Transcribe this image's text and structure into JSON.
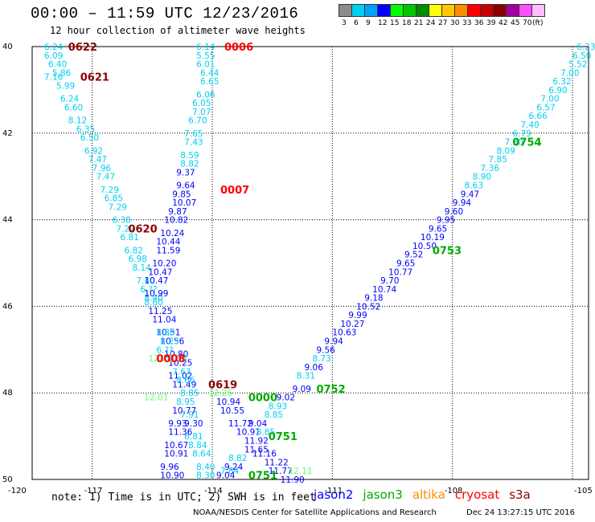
{
  "header": {
    "title": "00:00 – 11:59 UTC 12/23/2016",
    "subtitle": "12 hour collection of altimeter wave heights"
  },
  "legend": {
    "unit": "(ft)",
    "bins": [
      {
        "label": "3",
        "color": "#8c8c8c"
      },
      {
        "label": "6",
        "color": "#00d0f0"
      },
      {
        "label": "9",
        "color": "#00a0ff"
      },
      {
        "label": "12",
        "color": "#0000ff"
      },
      {
        "label": "15",
        "color": "#00ff00"
      },
      {
        "label": "18",
        "color": "#00c800"
      },
      {
        "label": "21",
        "color": "#008c00"
      },
      {
        "label": "24",
        "color": "#ffff00"
      },
      {
        "label": "27",
        "color": "#ffc800"
      },
      {
        "label": "30",
        "color": "#ff8c00"
      },
      {
        "label": "33",
        "color": "#ff0000"
      },
      {
        "label": "36",
        "color": "#c80000"
      },
      {
        "label": "39",
        "color": "#8c0000"
      },
      {
        "label": "42",
        "color": "#a000a0"
      },
      {
        "label": "45",
        "color": "#ff50ff"
      },
      {
        "label": "70",
        "color": "#ffc0ff"
      }
    ]
  },
  "axes": {
    "lon_ticks": [
      "-120",
      "-117",
      "-114",
      "-111",
      "-108",
      "-105"
    ],
    "lat_ticks": [
      "40",
      "42",
      "44",
      "46",
      "48",
      "50"
    ]
  },
  "colors": {
    "wave_lt3": "#00d0f0",
    "wave_lt6": "#00a0ff",
    "wave_lt9": "#0000ff",
    "wave_hi": "#000080",
    "jason2": "#0000ff",
    "jason3": "#00aa00",
    "cryosat": "#ff0000",
    "s3a": "#8c0000",
    "light_green": "#66ff66"
  },
  "map": {
    "wave_values": [
      {
        "lon": -118.2,
        "lat": 40.0,
        "v": "6.24",
        "c": "c"
      },
      {
        "lon": -118.2,
        "lat": 40.2,
        "v": "6.09",
        "c": "c"
      },
      {
        "lon": -118.1,
        "lat": 40.4,
        "v": "6.40",
        "c": "c"
      },
      {
        "lon": -118.0,
        "lat": 40.6,
        "v": "5.86",
        "c": "c"
      },
      {
        "lon": -118.2,
        "lat": 40.7,
        "v": "7.16",
        "c": "c"
      },
      {
        "lon": -117.9,
        "lat": 40.9,
        "v": "5.99",
        "c": "c"
      },
      {
        "lon": -117.8,
        "lat": 41.2,
        "v": "6.24",
        "c": "c"
      },
      {
        "lon": -117.7,
        "lat": 41.4,
        "v": "6.60",
        "c": "c"
      },
      {
        "lon": -117.6,
        "lat": 41.7,
        "v": "8.12",
        "c": "c"
      },
      {
        "lon": -117.4,
        "lat": 41.9,
        "v": "6.35",
        "c": "c"
      },
      {
        "lon": -117.3,
        "lat": 42.1,
        "v": "6.50",
        "c": "c"
      },
      {
        "lon": -117.2,
        "lat": 42.4,
        "v": "6.92",
        "c": "c"
      },
      {
        "lon": -117.1,
        "lat": 42.6,
        "v": "7.47",
        "c": "c"
      },
      {
        "lon": -117.0,
        "lat": 42.8,
        "v": "7.96",
        "c": "c"
      },
      {
        "lon": -116.9,
        "lat": 43.0,
        "v": "7.47",
        "c": "c"
      },
      {
        "lon": -116.8,
        "lat": 43.3,
        "v": "7.29",
        "c": "c"
      },
      {
        "lon": -116.7,
        "lat": 43.5,
        "v": "6.85",
        "c": "c"
      },
      {
        "lon": -116.6,
        "lat": 43.7,
        "v": "7.29",
        "c": "c"
      },
      {
        "lon": -116.5,
        "lat": 44.0,
        "v": "6.38",
        "c": "c"
      },
      {
        "lon": -116.4,
        "lat": 44.2,
        "v": "7.22",
        "c": "c"
      },
      {
        "lon": -116.3,
        "lat": 44.4,
        "v": "6.81",
        "c": "c"
      },
      {
        "lon": -116.2,
        "lat": 44.7,
        "v": "6.82",
        "c": "c"
      },
      {
        "lon": -116.1,
        "lat": 44.9,
        "v": "6.98",
        "c": "c"
      },
      {
        "lon": -116.0,
        "lat": 45.1,
        "v": "8.14",
        "c": "c"
      },
      {
        "lon": -115.9,
        "lat": 45.4,
        "v": "7.40",
        "c": "c"
      },
      {
        "lon": -115.8,
        "lat": 45.6,
        "v": "6.??",
        "c": "c"
      },
      {
        "lon": -115.7,
        "lat": 45.8,
        "v": "8.40",
        "c": "c"
      },
      {
        "lon": -115.6,
        "lat": 46.1,
        "v": "11.25",
        "c": "b"
      },
      {
        "lon": -115.5,
        "lat": 46.3,
        "v": "11.04",
        "c": "b"
      },
      {
        "lon": -115.4,
        "lat": 46.6,
        "v": "10.51",
        "c": "b"
      },
      {
        "lon": -115.3,
        "lat": 46.8,
        "v": "10.56",
        "c": "b"
      },
      {
        "lon": -115.2,
        "lat": 47.1,
        "v": "10.80",
        "c": "b"
      },
      {
        "lon": -115.1,
        "lat": 47.3,
        "v": "10.25",
        "c": "b"
      },
      {
        "lon": -115.1,
        "lat": 47.6,
        "v": "11.02",
        "c": "b"
      },
      {
        "lon": -115.0,
        "lat": 47.8,
        "v": "11.49",
        "c": "b"
      },
      {
        "lon": -114.4,
        "lat": 40.0,
        "v": "6.14",
        "c": "c"
      },
      {
        "lon": -114.4,
        "lat": 40.2,
        "v": "5.55",
        "c": "c"
      },
      {
        "lon": -114.4,
        "lat": 40.4,
        "v": "6.01",
        "c": "c"
      },
      {
        "lon": -114.3,
        "lat": 40.6,
        "v": "6.44",
        "c": "c"
      },
      {
        "lon": -114.3,
        "lat": 40.8,
        "v": "6.65",
        "c": "c"
      },
      {
        "lon": -114.4,
        "lat": 41.1,
        "v": "6.06",
        "c": "c"
      },
      {
        "lon": -114.5,
        "lat": 41.3,
        "v": "6.05",
        "c": "c"
      },
      {
        "lon": -114.5,
        "lat": 41.5,
        "v": "7.07",
        "c": "c"
      },
      {
        "lon": -114.6,
        "lat": 41.7,
        "v": "6.70",
        "c": "c"
      },
      {
        "lon": -114.7,
        "lat": 42.0,
        "v": "7.65",
        "c": "c"
      },
      {
        "lon": -114.7,
        "lat": 42.2,
        "v": "7.43",
        "c": "c"
      },
      {
        "lon": -114.8,
        "lat": 42.5,
        "v": "8.59",
        "c": "c"
      },
      {
        "lon": -114.8,
        "lat": 42.7,
        "v": "8.82",
        "c": "c"
      },
      {
        "lon": -114.9,
        "lat": 42.9,
        "v": "9.37",
        "c": "b"
      },
      {
        "lon": -114.9,
        "lat": 43.2,
        "v": "9.64",
        "c": "b"
      },
      {
        "lon": -115.0,
        "lat": 43.4,
        "v": "9.85",
        "c": "b"
      },
      {
        "lon": -115.0,
        "lat": 43.6,
        "v": "10.07",
        "c": "b"
      },
      {
        "lon": -115.1,
        "lat": 43.8,
        "v": "9.87",
        "c": "b"
      },
      {
        "lon": -115.2,
        "lat": 44.0,
        "v": "10.82",
        "c": "b"
      },
      {
        "lon": -115.3,
        "lat": 44.3,
        "v": "10.24",
        "c": "b"
      },
      {
        "lon": -115.4,
        "lat": 44.5,
        "v": "10.44",
        "c": "b"
      },
      {
        "lon": -115.4,
        "lat": 44.7,
        "v": "11.59",
        "c": "b"
      },
      {
        "lon": -115.5,
        "lat": 45.0,
        "v": "10.20",
        "c": "b"
      },
      {
        "lon": -115.6,
        "lat": 45.2,
        "v": "10.47",
        "c": "b"
      },
      {
        "lon": -115.7,
        "lat": 45.4,
        "v": "10.47",
        "c": "b"
      },
      {
        "lon": -115.7,
        "lat": 45.7,
        "v": "10.99",
        "c": "b"
      },
      {
        "lon": -115.7,
        "lat": 45.9,
        "v": "8.60",
        "c": "c"
      },
      {
        "lon": -115.4,
        "lat": 46.6,
        "v": "8.80",
        "c": "c"
      },
      {
        "lon": -115.3,
        "lat": 46.8,
        "v": "8.23",
        "c": "c"
      },
      {
        "lon": -115.4,
        "lat": 47.0,
        "v": "6.??",
        "c": "c"
      },
      {
        "lon": -115.1,
        "lat": 47.2,
        "v": "7.35",
        "c": "c"
      },
      {
        "lon": -115.0,
        "lat": 47.5,
        "v": "7.63",
        "c": "c"
      },
      {
        "lon": -114.9,
        "lat": 47.7,
        "v": "8.66",
        "c": "c"
      },
      {
        "lon": -114.8,
        "lat": 48.0,
        "v": "8.85",
        "c": "c"
      },
      {
        "lon": -114.9,
        "lat": 48.2,
        "v": "8.95",
        "c": "c"
      },
      {
        "lon": -114.8,
        "lat": 48.5,
        "v": "7.91",
        "c": "c"
      },
      {
        "lon": -114.7,
        "lat": 48.7,
        "v": "9.30",
        "c": "b"
      },
      {
        "lon": -114.7,
        "lat": 49.0,
        "v": "8.81",
        "c": "c"
      },
      {
        "lon": -114.6,
        "lat": 49.2,
        "v": "8.84",
        "c": "c"
      },
      {
        "lon": -114.5,
        "lat": 49.4,
        "v": "8.64",
        "c": "c"
      },
      {
        "lon": -114.4,
        "lat": 49.7,
        "v": "8.40",
        "c": "c"
      },
      {
        "lon": -114.4,
        "lat": 49.9,
        "v": "8.30",
        "c": "c"
      },
      {
        "lon": -115.0,
        "lat": 48.4,
        "v": "10.77",
        "c": "b"
      },
      {
        "lon": -115.1,
        "lat": 48.7,
        "v": "9.93",
        "c": "b"
      },
      {
        "lon": -115.1,
        "lat": 48.9,
        "v": "11.36",
        "c": "b"
      },
      {
        "lon": -115.2,
        "lat": 49.2,
        "v": "10.67",
        "c": "b"
      },
      {
        "lon": -115.2,
        "lat": 49.4,
        "v": "10.91",
        "c": "b"
      },
      {
        "lon": -115.3,
        "lat": 49.7,
        "v": "9.96",
        "c": "b"
      },
      {
        "lon": -115.3,
        "lat": 49.9,
        "v": "10.90",
        "c": "b"
      },
      {
        "lon": -113.9,
        "lat": 48.2,
        "v": "10.94",
        "c": "b"
      },
      {
        "lon": -113.8,
        "lat": 48.4,
        "v": "10.55",
        "c": "b"
      },
      {
        "lon": -113.6,
        "lat": 48.7,
        "v": "11.72",
        "c": "b"
      },
      {
        "lon": -113.4,
        "lat": 48.9,
        "v": "10.91",
        "c": "b"
      },
      {
        "lon": -113.2,
        "lat": 49.1,
        "v": "11.92",
        "c": "b"
      },
      {
        "lon": -113.2,
        "lat": 49.3,
        "v": "11.65",
        "c": "b"
      },
      {
        "lon": -113.0,
        "lat": 49.4,
        "v": "11.16",
        "c": "b"
      },
      {
        "lon": -112.7,
        "lat": 49.6,
        "v": "11.22",
        "c": "b"
      },
      {
        "lon": -112.6,
        "lat": 49.8,
        "v": "11.77",
        "c": "b"
      },
      {
        "lon": -112.3,
        "lat": 50.0,
        "v": "11.90",
        "c": "b"
      },
      {
        "lon": -113.6,
        "lat": 49.5,
        "v": "8.82",
        "c": "c"
      },
      {
        "lon": -113.7,
        "lat": 49.7,
        "v": "9.24",
        "c": "b"
      },
      {
        "lon": -113.8,
        "lat": 49.8,
        "v": "7.84",
        "c": "c"
      },
      {
        "lon": -113.9,
        "lat": 49.9,
        "v": "9.04",
        "c": "b"
      },
      {
        "lon": -113.1,
        "lat": 48.7,
        "v": "9.04",
        "c": "b"
      },
      {
        "lon": -112.9,
        "lat": 48.9,
        "v": "8.85",
        "c": "c"
      },
      {
        "lon": -112.7,
        "lat": 48.5,
        "v": "8.85",
        "c": "c"
      },
      {
        "lon": -112.6,
        "lat": 48.3,
        "v": "8.93",
        "c": "c"
      },
      {
        "lon": -112.4,
        "lat": 48.1,
        "v": "9.02",
        "c": "b"
      },
      {
        "lon": -112.0,
        "lat": 47.9,
        "v": "9.09",
        "c": "b"
      },
      {
        "lon": -111.9,
        "lat": 47.6,
        "v": "8.31",
        "c": "c"
      },
      {
        "lon": -111.7,
        "lat": 47.4,
        "v": "9.06",
        "c": "b"
      },
      {
        "lon": -111.5,
        "lat": 47.2,
        "v": "8.73",
        "c": "c"
      },
      {
        "lon": -111.4,
        "lat": 47.0,
        "v": "9.56",
        "c": "b"
      },
      {
        "lon": -111.2,
        "lat": 46.8,
        "v": "9.94",
        "c": "b"
      },
      {
        "lon": -111.0,
        "lat": 46.6,
        "v": "10.63",
        "c": "b"
      },
      {
        "lon": -110.8,
        "lat": 46.4,
        "v": "10.27",
        "c": "b"
      },
      {
        "lon": -110.6,
        "lat": 46.2,
        "v": "9.99",
        "c": "b"
      },
      {
        "lon": -110.4,
        "lat": 46.0,
        "v": "10.52",
        "c": "b"
      },
      {
        "lon": -110.2,
        "lat": 45.8,
        "v": "9.18",
        "c": "b"
      },
      {
        "lon": -110.0,
        "lat": 45.6,
        "v": "10.74",
        "c": "b"
      },
      {
        "lon": -109.8,
        "lat": 45.4,
        "v": "9.70",
        "c": "b"
      },
      {
        "lon": -109.6,
        "lat": 45.2,
        "v": "10.77",
        "c": "b"
      },
      {
        "lon": -109.4,
        "lat": 45.0,
        "v": "9.65",
        "c": "b"
      },
      {
        "lon": -109.2,
        "lat": 44.8,
        "v": "9.52",
        "c": "b"
      },
      {
        "lon": -109.0,
        "lat": 44.6,
        "v": "10.50",
        "c": "b"
      },
      {
        "lon": -108.8,
        "lat": 44.4,
        "v": "10.19",
        "c": "b"
      },
      {
        "lon": -108.6,
        "lat": 44.2,
        "v": "9.65",
        "c": "b"
      },
      {
        "lon": -108.4,
        "lat": 44.0,
        "v": "9.95",
        "c": "b"
      },
      {
        "lon": -108.2,
        "lat": 43.8,
        "v": "9.60",
        "c": "b"
      },
      {
        "lon": -108.0,
        "lat": 43.6,
        "v": "9.94",
        "c": "b"
      },
      {
        "lon": -107.8,
        "lat": 43.4,
        "v": "9.47",
        "c": "b"
      },
      {
        "lon": -107.7,
        "lat": 43.2,
        "v": "8.63",
        "c": "c"
      },
      {
        "lon": -107.5,
        "lat": 43.0,
        "v": "8.90",
        "c": "c"
      },
      {
        "lon": -107.3,
        "lat": 42.8,
        "v": "7.36",
        "c": "c"
      },
      {
        "lon": -107.1,
        "lat": 42.6,
        "v": "7.85",
        "c": "c"
      },
      {
        "lon": -106.9,
        "lat": 42.4,
        "v": "8.09",
        "c": "c"
      },
      {
        "lon": -106.7,
        "lat": 42.2,
        "v": "7.30",
        "c": "c"
      },
      {
        "lon": -106.5,
        "lat": 42.0,
        "v": "6.79",
        "c": "c"
      },
      {
        "lon": -106.3,
        "lat": 41.8,
        "v": "7.40",
        "c": "c"
      },
      {
        "lon": -106.1,
        "lat": 41.6,
        "v": "6.66",
        "c": "c"
      },
      {
        "lon": -105.9,
        "lat": 41.4,
        "v": "6.57",
        "c": "c"
      },
      {
        "lon": -105.8,
        "lat": 41.2,
        "v": "7.00",
        "c": "c"
      },
      {
        "lon": -105.6,
        "lat": 41.0,
        "v": "6.90",
        "c": "c"
      },
      {
        "lon": -105.5,
        "lat": 40.8,
        "v": "6.32",
        "c": "c"
      },
      {
        "lon": -105.3,
        "lat": 40.6,
        "v": "7.00",
        "c": "c"
      },
      {
        "lon": -105.1,
        "lat": 40.4,
        "v": "5.52",
        "c": "c"
      },
      {
        "lon": -105.0,
        "lat": 40.2,
        "v": "6.50",
        "c": "c"
      },
      {
        "lon": -104.9,
        "lat": 40.0,
        "v": "6.23",
        "c": "c"
      }
    ],
    "pass_labels": [
      {
        "text": "0622",
        "lon": -117.6,
        "lat": 40.0,
        "c": "s3a"
      },
      {
        "text": "0621",
        "lon": -117.3,
        "lat": 40.7,
        "c": "s3a"
      },
      {
        "text": "0006",
        "lon": -113.7,
        "lat": 40.0,
        "c": "cryosat"
      },
      {
        "text": "0007",
        "lon": -113.8,
        "lat": 43.3,
        "c": "cryosat"
      },
      {
        "text": "0620",
        "lon": -116.1,
        "lat": 44.2,
        "c": "s3a"
      },
      {
        "text": "0008",
        "lon": -115.4,
        "lat": 47.2,
        "c": "cryosat"
      },
      {
        "text": "0619",
        "lon": -114.1,
        "lat": 47.8,
        "c": "s3a"
      },
      {
        "text": "0000",
        "lon": -113.1,
        "lat": 48.1,
        "c": "jason3"
      },
      {
        "text": "0752",
        "lon": -111.4,
        "lat": 47.9,
        "c": "jason3"
      },
      {
        "text": "0751",
        "lon": -112.6,
        "lat": 49.0,
        "c": "jason3"
      },
      {
        "text": "0751",
        "lon": -113.1,
        "lat": 49.9,
        "c": "jason3"
      },
      {
        "text": "0753",
        "lon": -108.5,
        "lat": 44.7,
        "c": "jason3"
      },
      {
        "text": "0754",
        "lon": -106.5,
        "lat": 42.2,
        "c": "jason3"
      }
    ],
    "green_values": [
      {
        "text": "12.26",
        "lon": -115.6,
        "lat": 47.2
      },
      {
        "text": "12.01",
        "lon": -115.7,
        "lat": 48.1
      },
      {
        "text": "12.26",
        "lon": -114.1,
        "lat": 48.0
      },
      {
        "text": "12.11",
        "lon": -112.1,
        "lat": 49.8
      }
    ]
  },
  "footer": {
    "note": "note: 1) Time is in UTC; 2) SWH is in feet",
    "satellites": [
      {
        "name": "jason2",
        "color": "#0000ff"
      },
      {
        "name": "jason3",
        "color": "#00aa00"
      },
      {
        "name": "altika",
        "color": "#ff8c00"
      },
      {
        "name": "cryosat",
        "color": "#ff0000"
      },
      {
        "name": "s3a",
        "color": "#8c0000"
      }
    ],
    "credit": "NOAA/NESDIS Center for Satellite Applications and Research",
    "timestamp": "Dec 24 13:27:15 UTC 2016"
  }
}
